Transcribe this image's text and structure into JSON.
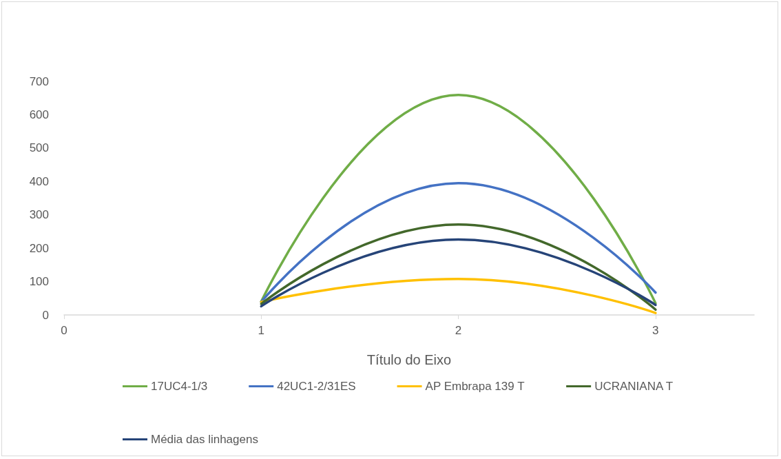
{
  "chart_data": {
    "type": "line",
    "xlabel": "Título do Eixo",
    "x": [
      1,
      2,
      3
    ],
    "series": [
      {
        "name": "17UC4-1/3",
        "color": "#70ad47",
        "values": [
          40,
          659,
          35
        ]
      },
      {
        "name": "42UC1-2/31ES",
        "color": "#4472c4",
        "values": [
          39,
          395,
          67
        ]
      },
      {
        "name": "AP Embrapa 139 T",
        "color": "#ffc000",
        "values": [
          39,
          108,
          6
        ]
      },
      {
        "name": "UCRANIANA T",
        "color": "#43682b",
        "values": [
          33,
          271,
          16
        ]
      },
      {
        "name": "Média das linhagens",
        "color": "#264478",
        "values": [
          26,
          226,
          30
        ]
      }
    ],
    "xlim": [
      0,
      3.5
    ],
    "xticks": [
      0,
      1,
      2,
      3
    ],
    "ylim": [
      0,
      700
    ],
    "yticks": [
      0,
      100,
      200,
      300,
      400,
      500,
      600,
      700
    ],
    "grid": false,
    "legend": "bottom",
    "marker": "none",
    "line_style": "solid"
  }
}
